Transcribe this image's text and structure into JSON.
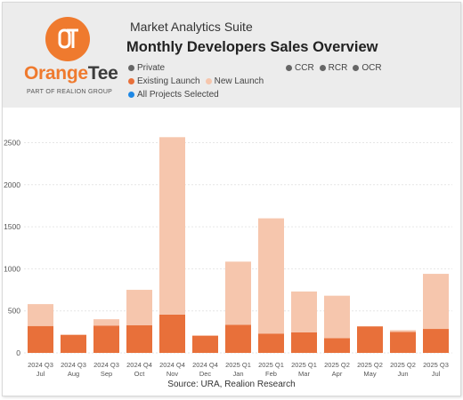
{
  "header": {
    "brand_part1": "Orange",
    "brand_part2": "Tee",
    "tagline": "PART OF REALION GROUP",
    "suite": "Market Analytics Suite",
    "title": "Monthly Developers Sales Overview",
    "logo_text": "OT"
  },
  "filters": {
    "market": {
      "label": "Private",
      "color": "#666666"
    },
    "regions": [
      {
        "label": "CCR",
        "color": "#666666"
      },
      {
        "label": "RCR",
        "color": "#666666"
      },
      {
        "label": "OCR",
        "color": "#666666"
      }
    ],
    "project_selection": {
      "label": "All Projects Selected",
      "color": "#1e88e5"
    }
  },
  "legend": [
    {
      "label": "Existing Launch",
      "color": "#e8703a"
    },
    {
      "label": "New Launch",
      "color": "#f6c6ad"
    }
  ],
  "source": "Source: URA, Realion Research",
  "chart_data": {
    "type": "bar",
    "stacked": true,
    "categories": [
      [
        "2024 Q3",
        "Jul"
      ],
      [
        "2024 Q3",
        "Aug"
      ],
      [
        "2024 Q3",
        "Sep"
      ],
      [
        "2024 Q4",
        "Oct"
      ],
      [
        "2024 Q4",
        "Nov"
      ],
      [
        "2024 Q4",
        "Dec"
      ],
      [
        "2025 Q1",
        "Jan"
      ],
      [
        "2025 Q1",
        "Feb"
      ],
      [
        "2025 Q1",
        "Mar"
      ],
      [
        "2025 Q2",
        "Apr"
      ],
      [
        "2025 Q2",
        "May"
      ],
      [
        "2025 Q2",
        "Jun"
      ],
      [
        "2025 Q3",
        "Jul"
      ]
    ],
    "series": [
      {
        "name": "Existing Launch",
        "color": "#e8703a",
        "values": [
          320,
          215,
          325,
          330,
          455,
          205,
          335,
          230,
          245,
          175,
          315,
          250,
          285
        ]
      },
      {
        "name": "New Launch",
        "color": "#f6c6ad",
        "values": [
          260,
          0,
          75,
          420,
          2110,
          0,
          750,
          1370,
          485,
          505,
          0,
          20,
          655
        ]
      }
    ],
    "yticks": [
      0,
      500,
      1000,
      1500,
      2000,
      2500
    ],
    "ylim": [
      0,
      2600
    ],
    "grid": true
  }
}
